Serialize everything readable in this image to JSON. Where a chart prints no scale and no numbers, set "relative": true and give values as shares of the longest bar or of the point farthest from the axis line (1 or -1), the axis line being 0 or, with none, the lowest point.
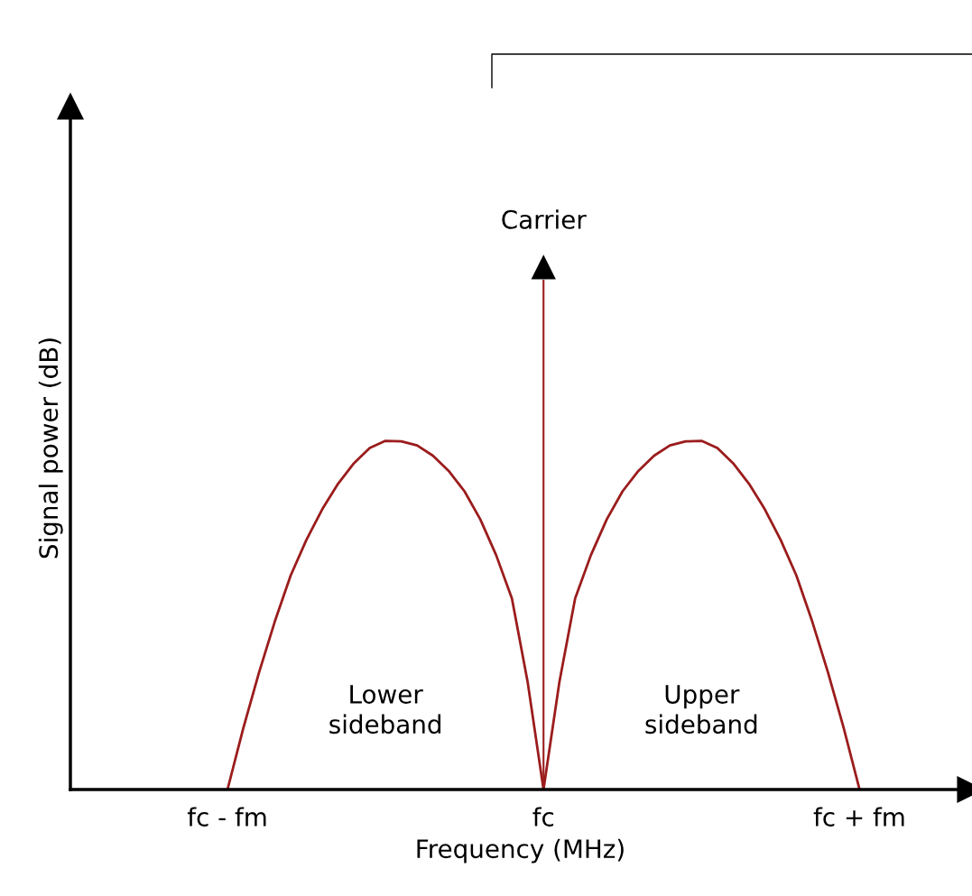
{
  "chart_data": {
    "type": "line",
    "relative": true,
    "xlabel": "Frequency (MHz)",
    "ylabel": "Signal power (dB)",
    "categories": [
      "fc - fm",
      null,
      null,
      null,
      null,
      null,
      null,
      null,
      null,
      null,
      null,
      null,
      null,
      null,
      null,
      null,
      null,
      null,
      null,
      null,
      "fc",
      null,
      null,
      null,
      null,
      null,
      null,
      null,
      null,
      null,
      null,
      null,
      null,
      null,
      null,
      null,
      null,
      null,
      null,
      null,
      "fc + fm"
    ],
    "grid": false,
    "legend": false,
    "series": [
      {
        "name": "Lower\nsideband",
        "color": "#9b1c1c",
        "values": [
          0,
          0.12,
          0.23,
          0.33,
          0.42,
          0.49,
          0.55,
          0.6,
          0.64,
          0.67,
          0.684,
          0.683,
          0.675,
          0.655,
          0.625,
          0.585,
          0.53,
          0.46,
          0.375,
          0.21,
          0,
          null,
          null,
          null,
          null,
          null,
          null,
          null,
          null,
          null,
          null,
          null,
          null,
          null,
          null,
          null,
          null,
          null,
          null,
          null,
          null
        ]
      },
      {
        "name": "Upper\nsideband",
        "color": "#9b1c1c",
        "values": [
          null,
          null,
          null,
          null,
          null,
          null,
          null,
          null,
          null,
          null,
          null,
          null,
          null,
          null,
          null,
          null,
          null,
          null,
          null,
          null,
          0,
          0.21,
          0.375,
          0.46,
          0.53,
          0.585,
          0.625,
          0.655,
          0.675,
          0.683,
          0.684,
          0.67,
          0.64,
          0.6,
          0.55,
          0.49,
          0.42,
          0.33,
          0.23,
          0.12,
          0
        ]
      },
      {
        "name": "Carrier",
        "type": "bar",
        "color": "#9b1c1c",
        "marker": "triangle",
        "values": [
          null,
          null,
          null,
          null,
          null,
          null,
          null,
          null,
          null,
          null,
          null,
          null,
          null,
          null,
          null,
          null,
          null,
          null,
          null,
          null,
          1,
          null,
          null,
          null,
          null,
          null,
          null,
          null,
          null,
          null,
          null,
          null,
          null,
          null,
          null,
          null,
          null,
          null,
          null,
          null,
          null
        ]
      }
    ]
  }
}
